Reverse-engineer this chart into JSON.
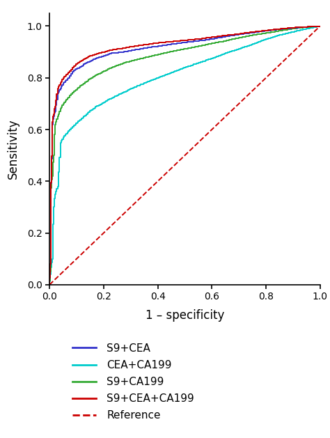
{
  "xlabel": "1 – specificity",
  "ylabel": "Sensitivity",
  "xlim": [
    0.0,
    1.0
  ],
  "ylim": [
    0.0,
    1.05
  ],
  "xticks": [
    0.0,
    0.2,
    0.4,
    0.6,
    0.8,
    1.0
  ],
  "yticks": [
    0.0,
    0.2,
    0.4,
    0.6,
    0.8,
    1.0
  ],
  "curves": {
    "S9+CEA": {
      "color": "#3333cc",
      "lw": 1.4,
      "points": [
        [
          0.0,
          0.0
        ],
        [
          0.003,
          0.08
        ],
        [
          0.005,
          0.38
        ],
        [
          0.007,
          0.42
        ],
        [
          0.01,
          0.62
        ],
        [
          0.015,
          0.65
        ],
        [
          0.02,
          0.67
        ],
        [
          0.03,
          0.74
        ],
        [
          0.04,
          0.76
        ],
        [
          0.05,
          0.78
        ],
        [
          0.07,
          0.8
        ],
        [
          0.09,
          0.83
        ],
        [
          0.11,
          0.84
        ],
        [
          0.13,
          0.855
        ],
        [
          0.15,
          0.865
        ],
        [
          0.17,
          0.875
        ],
        [
          0.2,
          0.885
        ],
        [
          0.23,
          0.895
        ],
        [
          0.27,
          0.9
        ],
        [
          0.3,
          0.905
        ],
        [
          0.35,
          0.915
        ],
        [
          0.4,
          0.922
        ],
        [
          0.45,
          0.93
        ],
        [
          0.5,
          0.937
        ],
        [
          0.55,
          0.943
        ],
        [
          0.6,
          0.95
        ],
        [
          0.65,
          0.96
        ],
        [
          0.7,
          0.968
        ],
        [
          0.75,
          0.975
        ],
        [
          0.8,
          0.982
        ],
        [
          0.85,
          0.988
        ],
        [
          0.9,
          0.993
        ],
        [
          0.95,
          0.997
        ],
        [
          1.0,
          1.0
        ]
      ]
    },
    "CEA+CA199": {
      "color": "#00cccc",
      "lw": 1.4,
      "points": [
        [
          0.0,
          0.0
        ],
        [
          0.003,
          0.04
        ],
        [
          0.005,
          0.06
        ],
        [
          0.007,
          0.08
        ],
        [
          0.01,
          0.1
        ],
        [
          0.015,
          0.3
        ],
        [
          0.02,
          0.35
        ],
        [
          0.03,
          0.38
        ],
        [
          0.04,
          0.55
        ],
        [
          0.05,
          0.57
        ],
        [
          0.07,
          0.595
        ],
        [
          0.09,
          0.615
        ],
        [
          0.11,
          0.635
        ],
        [
          0.13,
          0.655
        ],
        [
          0.15,
          0.672
        ],
        [
          0.17,
          0.688
        ],
        [
          0.2,
          0.705
        ],
        [
          0.23,
          0.722
        ],
        [
          0.27,
          0.742
        ],
        [
          0.3,
          0.758
        ],
        [
          0.35,
          0.78
        ],
        [
          0.4,
          0.8
        ],
        [
          0.45,
          0.82
        ],
        [
          0.5,
          0.84
        ],
        [
          0.55,
          0.858
        ],
        [
          0.6,
          0.875
        ],
        [
          0.65,
          0.895
        ],
        [
          0.7,
          0.912
        ],
        [
          0.75,
          0.93
        ],
        [
          0.8,
          0.95
        ],
        [
          0.85,
          0.965
        ],
        [
          0.9,
          0.978
        ],
        [
          0.95,
          0.99
        ],
        [
          1.0,
          1.0
        ]
      ]
    },
    "S9+CA199": {
      "color": "#33aa33",
      "lw": 1.4,
      "points": [
        [
          0.0,
          0.0
        ],
        [
          0.003,
          0.05
        ],
        [
          0.005,
          0.36
        ],
        [
          0.007,
          0.4
        ],
        [
          0.01,
          0.42
        ],
        [
          0.015,
          0.5
        ],
        [
          0.02,
          0.62
        ],
        [
          0.03,
          0.65
        ],
        [
          0.04,
          0.68
        ],
        [
          0.05,
          0.7
        ],
        [
          0.07,
          0.725
        ],
        [
          0.09,
          0.748
        ],
        [
          0.11,
          0.765
        ],
        [
          0.13,
          0.782
        ],
        [
          0.15,
          0.797
        ],
        [
          0.17,
          0.81
        ],
        [
          0.2,
          0.825
        ],
        [
          0.23,
          0.84
        ],
        [
          0.27,
          0.856
        ],
        [
          0.3,
          0.865
        ],
        [
          0.35,
          0.878
        ],
        [
          0.4,
          0.89
        ],
        [
          0.45,
          0.902
        ],
        [
          0.5,
          0.912
        ],
        [
          0.55,
          0.922
        ],
        [
          0.6,
          0.933
        ],
        [
          0.65,
          0.943
        ],
        [
          0.7,
          0.955
        ],
        [
          0.75,
          0.965
        ],
        [
          0.8,
          0.973
        ],
        [
          0.85,
          0.982
        ],
        [
          0.9,
          0.99
        ],
        [
          0.95,
          0.996
        ],
        [
          1.0,
          1.0
        ]
      ]
    },
    "S9+CEA+CA199": {
      "color": "#cc0000",
      "lw": 1.4,
      "points": [
        [
          0.0,
          0.0
        ],
        [
          0.003,
          0.08
        ],
        [
          0.005,
          0.38
        ],
        [
          0.007,
          0.43
        ],
        [
          0.01,
          0.63
        ],
        [
          0.015,
          0.66
        ],
        [
          0.02,
          0.69
        ],
        [
          0.03,
          0.76
        ],
        [
          0.04,
          0.78
        ],
        [
          0.05,
          0.8
        ],
        [
          0.07,
          0.82
        ],
        [
          0.09,
          0.845
        ],
        [
          0.11,
          0.862
        ],
        [
          0.13,
          0.875
        ],
        [
          0.15,
          0.885
        ],
        [
          0.17,
          0.892
        ],
        [
          0.2,
          0.9
        ],
        [
          0.23,
          0.908
        ],
        [
          0.27,
          0.914
        ],
        [
          0.3,
          0.92
        ],
        [
          0.35,
          0.928
        ],
        [
          0.4,
          0.935
        ],
        [
          0.45,
          0.94
        ],
        [
          0.5,
          0.945
        ],
        [
          0.55,
          0.95
        ],
        [
          0.6,
          0.957
        ],
        [
          0.65,
          0.964
        ],
        [
          0.7,
          0.97
        ],
        [
          0.75,
          0.977
        ],
        [
          0.8,
          0.983
        ],
        [
          0.85,
          0.989
        ],
        [
          0.9,
          0.994
        ],
        [
          0.95,
          0.997
        ],
        [
          1.0,
          1.0
        ]
      ]
    }
  },
  "reference": {
    "color": "#cc0000",
    "lw": 1.4,
    "linestyle": "--"
  },
  "legend_labels": [
    "S9+CEA",
    "CEA+CA199",
    "S9+CA199",
    "S9+CEA+CA199",
    "Reference"
  ],
  "legend_colors": [
    "#3333cc",
    "#00cccc",
    "#33aa33",
    "#cc0000",
    "#cc0000"
  ],
  "legend_linestyles": [
    "-",
    "-",
    "-",
    "-",
    "--"
  ],
  "background_color": "#ffffff",
  "figsize": [
    4.74,
    6.29
  ],
  "dpi": 100
}
